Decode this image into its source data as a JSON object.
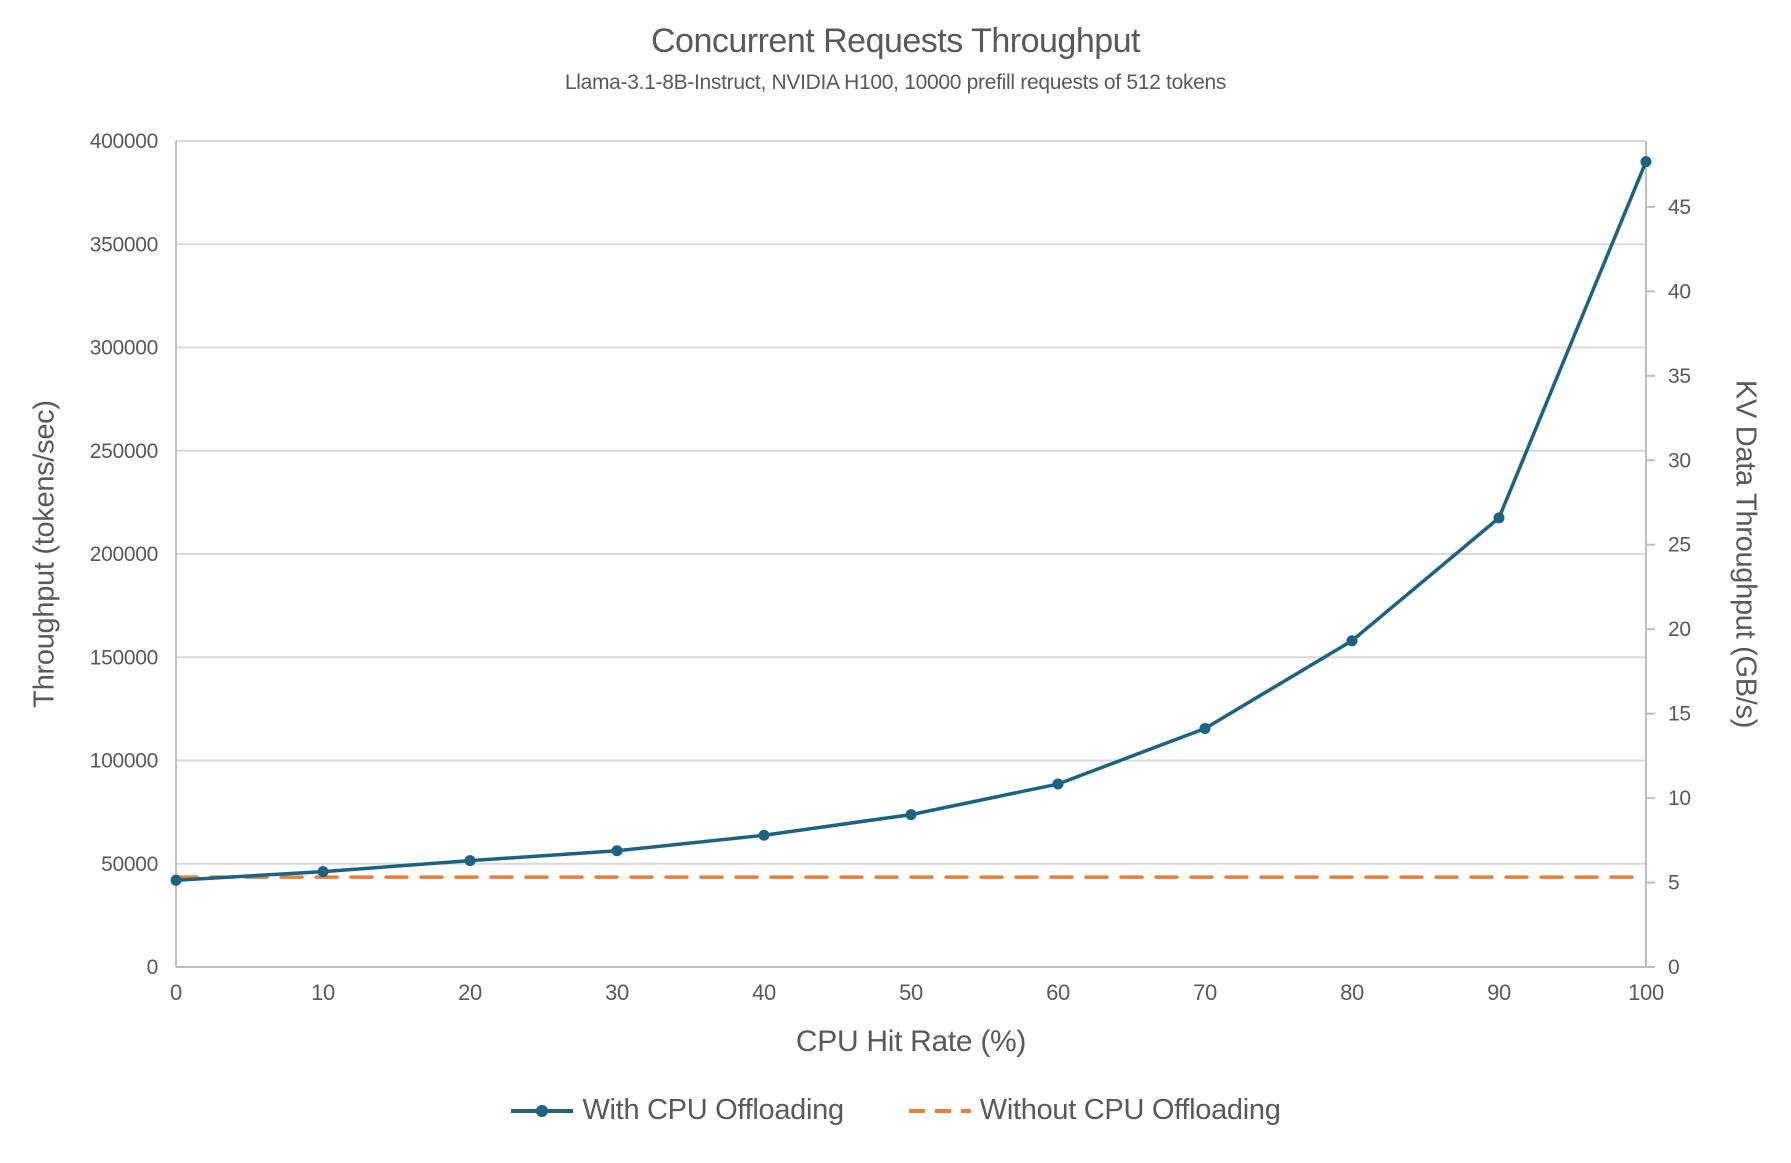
{
  "chart_data": {
    "type": "line",
    "title": "Concurrent Requests Throughput",
    "subtitle": "Llama-3.1-8B-Instruct, NVIDIA H100, 10000 prefill requests of 512 tokens",
    "xlabel": "CPU Hit Rate (%)",
    "ylabel_left": "Throughput (tokens/sec)",
    "ylabel_right": "KV Data Throughput (GB/s)",
    "x": [
      0,
      10,
      20,
      30,
      40,
      50,
      60,
      70,
      80,
      90,
      100
    ],
    "xticks": [
      0,
      10,
      20,
      30,
      40,
      50,
      60,
      70,
      80,
      90,
      100
    ],
    "xlim": [
      0,
      100
    ],
    "ylim_left": [
      0,
      400000
    ],
    "yticks_left": [
      0,
      50000,
      100000,
      150000,
      200000,
      250000,
      300000,
      350000,
      400000
    ],
    "ylim_right": [
      0,
      48.9
    ],
    "yticks_right": [
      0,
      5,
      10,
      15,
      20,
      25,
      30,
      35,
      40,
      45
    ],
    "grid": "horizontal",
    "legend_position": "bottom",
    "colors": {
      "gridline": "#d9d9d9",
      "axis_line": "#bfbfbf",
      "text": "#595959",
      "series_blue": "#1c6383",
      "series_orange": "#ed7d31"
    },
    "series": [
      {
        "name": "With CPU Offloading",
        "axis": "left",
        "color": "#1c6383",
        "line_style": "solid",
        "markers": true,
        "values": [
          42000,
          46200,
          51500,
          56300,
          63800,
          73800,
          88600,
          115500,
          158000,
          217500,
          390000
        ]
      },
      {
        "name": "Without CPU Offloading",
        "axis": "left",
        "color": "#ed7d31",
        "line_style": "dashed",
        "markers": false,
        "values": [
          43500,
          43500,
          43500,
          43500,
          43500,
          43500,
          43500,
          43500,
          43500,
          43500,
          43500
        ]
      }
    ]
  }
}
